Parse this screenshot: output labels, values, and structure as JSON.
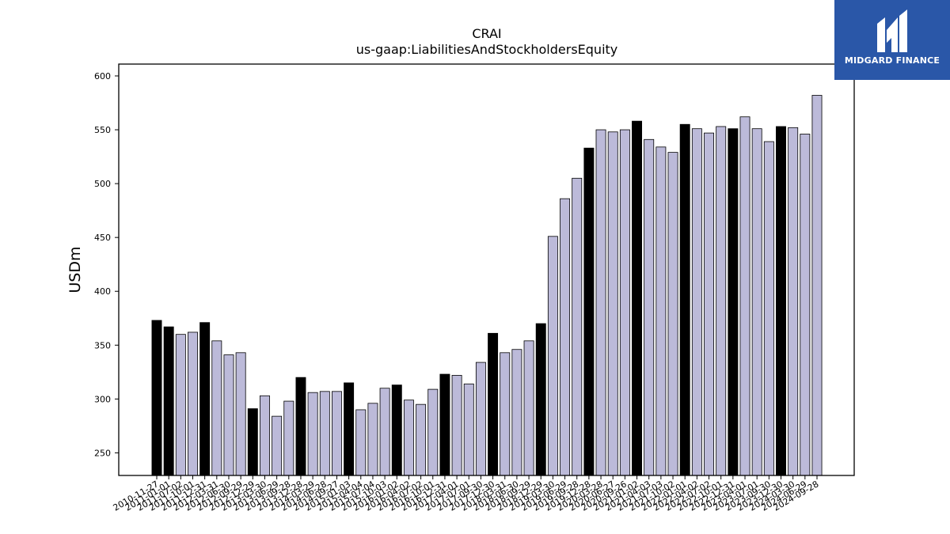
{
  "logo": {
    "text": "MIDGARD FINANCE"
  },
  "chart_data": {
    "type": "bar",
    "title": "CRAI",
    "subtitle": "us-gaap:LiabilitiesAndStockholdersEquity",
    "ylabel": "USDm",
    "xlabel": "",
    "ylim": [
      229,
      611
    ],
    "yticks": [
      250,
      300,
      350,
      400,
      450,
      500,
      550,
      600
    ],
    "colors": {
      "annual": "#000000",
      "quarterly": "#bcbad9",
      "edge": "#000000"
    },
    "categories": [
      "2010-11-27",
      "2011-01-01",
      "2011-07-02",
      "2011-10-01",
      "2011-12-31",
      "2012-03-31",
      "2012-06-30",
      "2012-09-29",
      "2012-12-29",
      "2013-03-30",
      "2013-06-29",
      "2013-09-28",
      "2013-12-28",
      "2014-03-29",
      "2014-06-28",
      "2014-09-27",
      "2015-01-03",
      "2015-04-04",
      "2015-07-04",
      "2015-10-03",
      "2016-01-02",
      "2016-04-02",
      "2016-07-02",
      "2016-10-01",
      "2016-12-31",
      "2017-04-01",
      "2017-07-01",
      "2017-09-30",
      "2017-12-30",
      "2018-03-31",
      "2018-06-30",
      "2018-09-29",
      "2018-12-29",
      "2019-03-30",
      "2019-06-29",
      "2019-09-28",
      "2019-12-28",
      "2020-03-28",
      "2020-06-27",
      "2020-09-26",
      "2021-01-02",
      "2021-04-03",
      "2021-07-03",
      "2021-10-02",
      "2022-01-01",
      "2022-04-02",
      "2022-07-02",
      "2022-10-01",
      "2022-12-31",
      "2023-04-01",
      "2023-07-01",
      "2023-09-30",
      "2023-12-30",
      "2024-03-30",
      "2024-06-29",
      "2024-09-28"
    ],
    "values": [
      373,
      367,
      360,
      362,
      371,
      354,
      341,
      343,
      291,
      303,
      284,
      298,
      320,
      306,
      307,
      307,
      315,
      290,
      296,
      310,
      313,
      299,
      295,
      309,
      323,
      322,
      314,
      334,
      361,
      343,
      346,
      354,
      370,
      451,
      486,
      505,
      533,
      550,
      548,
      550,
      558,
      541,
      534,
      529,
      555,
      551,
      547,
      553,
      551,
      562,
      551,
      539,
      553,
      552,
      546,
      582
    ],
    "annual": [
      true,
      true,
      false,
      false,
      true,
      false,
      false,
      false,
      true,
      false,
      false,
      false,
      true,
      false,
      false,
      false,
      true,
      false,
      false,
      false,
      true,
      false,
      false,
      false,
      true,
      false,
      false,
      false,
      true,
      false,
      false,
      false,
      true,
      false,
      false,
      false,
      true,
      false,
      false,
      false,
      true,
      false,
      false,
      false,
      true,
      false,
      false,
      false,
      true,
      false,
      false,
      false,
      true,
      false,
      false,
      false
    ]
  }
}
